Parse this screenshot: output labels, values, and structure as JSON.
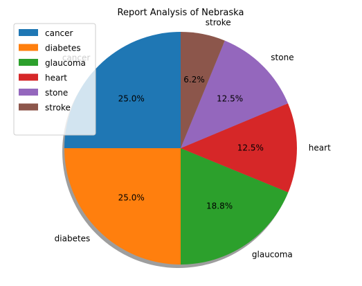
{
  "chart_data": {
    "type": "pie",
    "title": "Report Analysis of Nebraska",
    "categories": [
      "cancer",
      "diabetes",
      "glaucoma",
      "heart",
      "stone",
      "stroke"
    ],
    "values": [
      25.0,
      25.0,
      18.8,
      12.5,
      12.5,
      6.2
    ],
    "value_labels": [
      "25.0%",
      "25.0%",
      "18.8%",
      "12.5%",
      "12.5%",
      "6.2%"
    ],
    "colors": [
      "#1f77b4",
      "#ff7f0e",
      "#2ca02c",
      "#d62728",
      "#9467bd",
      "#8c564b"
    ],
    "start_angle_deg": 90,
    "direction": "counterclockwise",
    "shadow": true,
    "legend": {
      "placement": "upper-left",
      "entries": [
        "cancer",
        "diabetes",
        "glaucoma",
        "heart",
        "stone",
        "stroke"
      ]
    }
  }
}
